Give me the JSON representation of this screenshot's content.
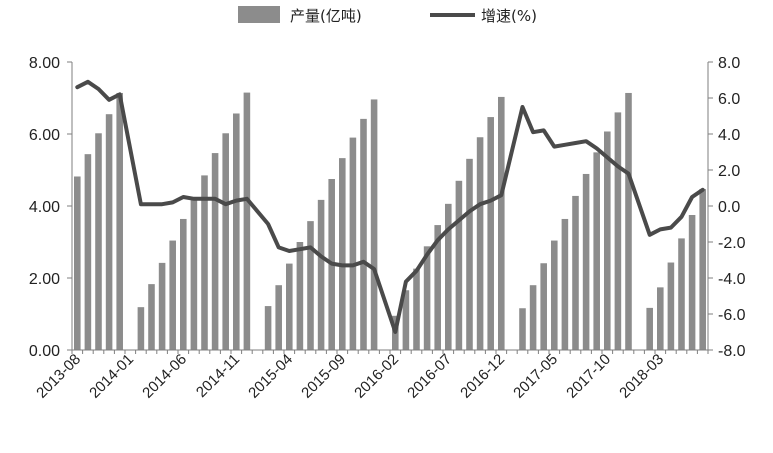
{
  "chart_data": {
    "type": "bar+line",
    "legend": {
      "bar_label": "产量(亿吨)",
      "line_label": "增速(%)",
      "placement": "top-center"
    },
    "y_left": {
      "min": 0,
      "max": 8,
      "ticks": [
        "0.00",
        "2.00",
        "4.00",
        "6.00",
        "8.00"
      ]
    },
    "y_right": {
      "min": -8,
      "max": 8,
      "ticks": [
        "-8.0",
        "-6.0",
        "-4.0",
        "-2.0",
        "0.0",
        "2.0",
        "4.0",
        "6.0",
        "8.0"
      ]
    },
    "x_tick_labels": [
      "2013-08",
      "2014-01",
      "2014-06",
      "2014-11",
      "2015-04",
      "2015-09",
      "2016-02",
      "2016-07",
      "2016-12",
      "2017-05",
      "2017-10",
      "2018-03"
    ],
    "x_tick_every": 5,
    "categories": [
      "2013-08",
      "2013-09",
      "2013-10",
      "2013-11",
      "2013-12",
      "2014-01",
      "2014-02",
      "2014-03",
      "2014-04",
      "2014-05",
      "2014-06",
      "2014-07",
      "2014-08",
      "2014-09",
      "2014-10",
      "2014-11",
      "2014-12",
      "2015-01",
      "2015-02",
      "2015-03",
      "2015-04",
      "2015-05",
      "2015-06",
      "2015-07",
      "2015-08",
      "2015-09",
      "2015-10",
      "2015-11",
      "2015-12",
      "2016-01",
      "2016-02",
      "2016-03",
      "2016-04",
      "2016-05",
      "2016-06",
      "2016-07",
      "2016-08",
      "2016-09",
      "2016-10",
      "2016-11",
      "2016-12",
      "2017-01",
      "2017-02",
      "2017-03",
      "2017-04",
      "2017-05",
      "2017-06",
      "2017-07",
      "2017-08",
      "2017-09",
      "2017-10",
      "2017-11",
      "2017-12",
      "2018-01",
      "2018-02",
      "2018-03",
      "2018-04",
      "2018-05",
      "2018-06",
      "2018-07"
    ],
    "series": [
      {
        "name": "产量(亿吨)",
        "axis": "left",
        "kind": "bar",
        "values": [
          4.82,
          5.44,
          6.02,
          6.55,
          7.14,
          null,
          1.19,
          1.83,
          2.42,
          3.04,
          3.64,
          4.25,
          4.85,
          5.47,
          6.02,
          6.57,
          7.15,
          null,
          1.22,
          1.8,
          2.4,
          3.0,
          3.58,
          4.17,
          4.75,
          5.33,
          5.9,
          6.42,
          6.96,
          null,
          0.95,
          1.66,
          2.26,
          2.88,
          3.47,
          4.06,
          4.7,
          5.31,
          5.91,
          6.47,
          7.03,
          null,
          1.16,
          1.8,
          2.41,
          3.04,
          3.64,
          4.28,
          4.89,
          5.49,
          6.07,
          6.6,
          7.14,
          null,
          1.17,
          1.74,
          2.43,
          3.1,
          3.75,
          4.47
        ]
      },
      {
        "name": "增速(%)",
        "axis": "right",
        "kind": "line",
        "values": [
          6.6,
          6.9,
          6.5,
          5.9,
          6.2,
          null,
          0.1,
          0.1,
          0.1,
          0.2,
          0.5,
          0.4,
          0.4,
          0.4,
          0.1,
          0.3,
          0.4,
          null,
          -1.0,
          -2.3,
          -2.5,
          -2.4,
          -2.3,
          -2.8,
          -3.2,
          -3.3,
          -3.3,
          -3.1,
          -3.5,
          null,
          -7.0,
          -4.2,
          -3.6,
          -2.7,
          -1.9,
          -1.3,
          -0.8,
          -0.3,
          0.1,
          0.3,
          0.6,
          null,
          5.5,
          4.1,
          4.2,
          3.3,
          3.4,
          3.5,
          3.6,
          3.2,
          2.7,
          2.2,
          1.8,
          null,
          -1.6,
          -1.3,
          -1.2,
          -0.6,
          0.5,
          0.9
        ]
      }
    ],
    "colors": {
      "bar": "#8c8c8c",
      "line": "#4a4a4a",
      "axis": "#7f7f7f"
    },
    "grid": false
  }
}
